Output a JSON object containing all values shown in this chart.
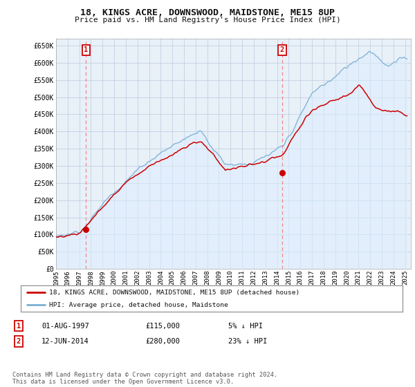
{
  "title": "18, KINGS ACRE, DOWNSWOOD, MAIDSTONE, ME15 8UP",
  "subtitle": "Price paid vs. HM Land Registry's House Price Index (HPI)",
  "ylabel_ticks": [
    "£0",
    "£50K",
    "£100K",
    "£150K",
    "£200K",
    "£250K",
    "£300K",
    "£350K",
    "£400K",
    "£450K",
    "£500K",
    "£550K",
    "£600K",
    "£650K"
  ],
  "ytick_values": [
    0,
    50000,
    100000,
    150000,
    200000,
    250000,
    300000,
    350000,
    400000,
    450000,
    500000,
    550000,
    600000,
    650000
  ],
  "ylim": [
    0,
    670000
  ],
  "xlim_start": 1995.0,
  "xlim_end": 2025.5,
  "sale1_year": 1997.58,
  "sale1_price": 115000,
  "sale2_year": 2014.44,
  "sale2_price": 280000,
  "hpi_color": "#7bafd4",
  "hpi_fill": "#ddeeff",
  "price_color": "#cc0000",
  "dashed_color": "#ee8888",
  "legend_label1": "18, KINGS ACRE, DOWNSWOOD, MAIDSTONE, ME15 8UP (detached house)",
  "legend_label2": "HPI: Average price, detached house, Maidstone",
  "annotation1_label": "1",
  "annotation1_date": "01-AUG-1997",
  "annotation1_price": "£115,000",
  "annotation1_hpi": "5% ↓ HPI",
  "annotation2_label": "2",
  "annotation2_date": "12-JUN-2014",
  "annotation2_price": "£280,000",
  "annotation2_hpi": "23% ↓ HPI",
  "footer": "Contains HM Land Registry data © Crown copyright and database right 2024.\nThis data is licensed under the Open Government Licence v3.0.",
  "background_color": "#ffffff",
  "chart_bg": "#e8f0f8",
  "grid_color": "#bbccdd",
  "xtick_years": [
    1995,
    1996,
    1997,
    1998,
    1999,
    2000,
    2001,
    2002,
    2003,
    2004,
    2005,
    2006,
    2007,
    2008,
    2009,
    2010,
    2011,
    2012,
    2013,
    2014,
    2015,
    2016,
    2017,
    2018,
    2019,
    2020,
    2021,
    2022,
    2023,
    2024,
    2025
  ]
}
